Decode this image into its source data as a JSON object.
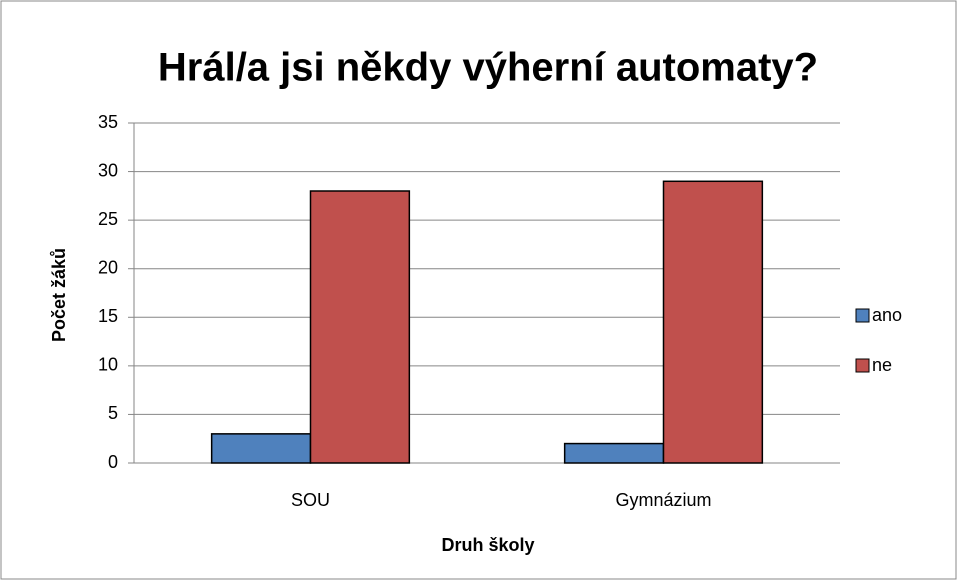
{
  "chart_data": {
    "type": "bar",
    "title": "Hrál/a jsi někdy výherní automaty?",
    "x_label": "Druh školy",
    "y_label": "Počet žáků",
    "categories": [
      "SOU",
      "Gymnázium"
    ],
    "series": [
      {
        "name": "ano",
        "color": "#4f81bd",
        "values": [
          3,
          2
        ]
      },
      {
        "name": "ne",
        "color": "#c0504d",
        "values": [
          28,
          29
        ]
      }
    ],
    "ylim": [
      0,
      35
    ],
    "yticks": [
      0,
      5,
      10,
      15,
      20,
      25,
      30,
      35
    ],
    "grid": true,
    "legend": "right"
  }
}
